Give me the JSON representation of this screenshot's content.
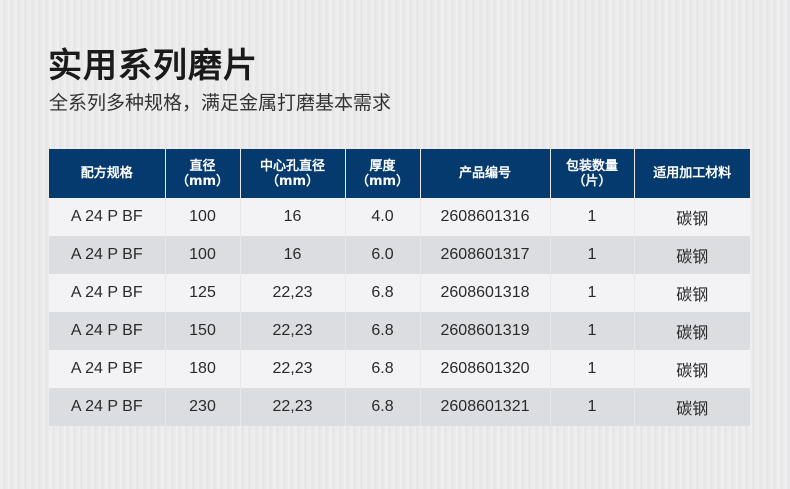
{
  "title": "实用系列磨片",
  "subtitle": "全系列多种规格，满足金属打磨基本需求",
  "headers": [
    [
      "配方规格",
      ""
    ],
    [
      "直径",
      "（mm）"
    ],
    [
      "中心孔直径",
      "（mm）"
    ],
    [
      "厚度",
      "（mm）"
    ],
    [
      "产品编号",
      ""
    ],
    [
      "包装数量",
      "（片）"
    ],
    [
      "适用加工材料",
      ""
    ]
  ],
  "rows": [
    [
      "A 24 P BF",
      "100",
      "16",
      "4.0",
      "2608601316",
      "1",
      "碳钢"
    ],
    [
      "A 24 P BF",
      "100",
      "16",
      "6.0",
      "2608601317",
      "1",
      "碳钢"
    ],
    [
      "A 24 P BF",
      "125",
      "22,23",
      "6.8",
      "2608601318",
      "1",
      "碳钢"
    ],
    [
      "A 24 P BF",
      "150",
      "22,23",
      "6.8",
      "2608601319",
      "1",
      "碳钢"
    ],
    [
      "A 24 P BF",
      "180",
      "22,23",
      "6.8",
      "2608601320",
      "1",
      "碳钢"
    ],
    [
      "A 24 P BF",
      "230",
      "22,23",
      "6.8",
      "2608601321",
      "1",
      "碳钢"
    ]
  ],
  "colors": {
    "header_bg": "#053a6e"
  }
}
